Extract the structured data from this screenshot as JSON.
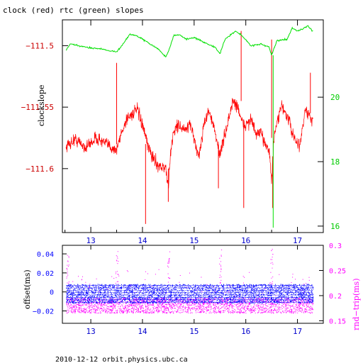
{
  "title": "clock (red) rtc (green) slopes",
  "footer": "2010-12-12  orbit.physics.ubc.ca",
  "colors": {
    "clock": "#ff0000",
    "rtc": "#00e000",
    "offset": "#0000ff",
    "roundtrip": "#ff00ff",
    "axis_left_top": "#cc0000",
    "axis_right_top": "#00cc00",
    "axis_left_bottom": "#0000ff",
    "axis_right_bottom": "#ff00ff"
  },
  "chart_data": [
    {
      "type": "line",
      "title": "clock (red) rtc (green) slopes",
      "xlabel": "",
      "ylabel": "clockslope",
      "xlim": [
        12.45,
        17.5
      ],
      "ylim": [
        -111.652,
        -111.479
      ],
      "y2lim": [
        15.8,
        22.4
      ],
      "x_ticks": [
        13,
        14,
        15,
        16,
        17
      ],
      "y_ticks": [
        -111.5,
        -111.55,
        -111.6
      ],
      "y_tick_labels": [
        "−111.5",
        "−111.55",
        "−111.6"
      ],
      "y2_ticks": [
        16,
        18,
        20
      ],
      "grid": false,
      "series": [
        {
          "name": "clock",
          "axis": "left",
          "x": [
            12.52,
            12.7,
            12.9,
            13.1,
            13.3,
            13.5,
            13.6,
            13.7,
            13.9,
            14.0,
            14.1,
            14.2,
            14.3,
            14.45,
            14.5,
            14.55,
            14.6,
            14.7,
            14.8,
            14.95,
            15.05,
            15.1,
            15.2,
            15.3,
            15.4,
            15.5,
            15.6,
            15.75,
            15.85,
            15.95,
            16.1,
            16.2,
            16.3,
            16.45,
            16.5,
            16.55,
            16.7,
            16.85,
            16.95,
            17.05,
            17.15,
            17.3
          ],
          "y": [
            -111.582,
            -111.576,
            -111.583,
            -111.575,
            -111.58,
            -111.585,
            -111.57,
            -111.559,
            -111.552,
            -111.565,
            -111.581,
            -111.591,
            -111.597,
            -111.6,
            -111.615,
            -111.585,
            -111.57,
            -111.564,
            -111.569,
            -111.565,
            -111.586,
            -111.589,
            -111.561,
            -111.553,
            -111.571,
            -111.588,
            -111.572,
            -111.545,
            -111.55,
            -111.566,
            -111.56,
            -111.572,
            -111.572,
            -111.585,
            -111.61,
            -111.573,
            -111.548,
            -111.563,
            -111.578,
            -111.581,
            -111.552,
            -111.562
          ]
        },
        {
          "name": "rtc",
          "axis": "right",
          "x": [
            12.52,
            12.6,
            12.9,
            13.2,
            13.5,
            13.6,
            13.75,
            13.9,
            14.1,
            14.3,
            14.45,
            14.5,
            14.6,
            14.7,
            14.85,
            15.0,
            15.2,
            15.4,
            15.5,
            15.6,
            15.8,
            15.9,
            16.1,
            16.3,
            16.45,
            16.5,
            16.6,
            16.8,
            16.9,
            17.0,
            17.2,
            17.3
          ],
          "y": [
            21.45,
            21.65,
            21.55,
            21.5,
            21.4,
            21.6,
            21.95,
            21.9,
            21.7,
            21.5,
            21.25,
            21.4,
            21.9,
            21.95,
            21.8,
            21.85,
            21.7,
            21.55,
            21.35,
            21.8,
            22.05,
            21.95,
            21.6,
            21.65,
            21.55,
            21.3,
            21.75,
            21.8,
            22.15,
            22.05,
            22.2,
            22.05
          ]
        }
      ],
      "spikes": {
        "clock": [
          {
            "x": 13.5,
            "y0": -111.58,
            "y1": -111.514
          },
          {
            "x": 14.06,
            "y0": -111.58,
            "y1": -111.645
          },
          {
            "x": 14.5,
            "y0": -111.6,
            "y1": -111.627
          },
          {
            "x": 15.47,
            "y0": -111.58,
            "y1": -111.616
          },
          {
            "x": 15.91,
            "y0": -111.545,
            "y1": -111.488
          },
          {
            "x": 15.96,
            "y0": -111.56,
            "y1": -111.632
          },
          {
            "x": 16.5,
            "y0": -111.575,
            "y1": -111.495
          },
          {
            "x": 16.52,
            "y0": -111.59,
            "y1": -111.632
          },
          {
            "x": 17.25,
            "y0": -111.555,
            "y1": -111.522
          }
        ],
        "rtc": [
          {
            "x": 16.53,
            "y0": 21.3,
            "y1": 15.95
          }
        ]
      }
    },
    {
      "type": "scatter",
      "xlabel": "",
      "ylabel": "offset(ms)",
      "y2label": "rnd−trip(ms)",
      "xlim": [
        12.45,
        17.5
      ],
      "ylim": [
        -0.033,
        0.049
      ],
      "y2lim": [
        0.145,
        0.3
      ],
      "x_ticks": [
        13,
        14,
        15,
        16,
        17
      ],
      "y_ticks": [
        0.04,
        0.02,
        0,
        -0.02
      ],
      "y_tick_labels": [
        "0.04",
        "0.02",
        "0",
        "−0.02"
      ],
      "y2_ticks": [
        0.15,
        0.2,
        0.25,
        0.3
      ],
      "grid": false,
      "series": [
        {
          "name": "offset",
          "axis": "left",
          "band": [
            -0.012,
            0.008
          ],
          "outliers_max": 0.045
        },
        {
          "name": "rnd-trip",
          "axis": "right",
          "band": [
            0.165,
            0.195
          ],
          "outliers_max": 0.29
        }
      ]
    }
  ]
}
